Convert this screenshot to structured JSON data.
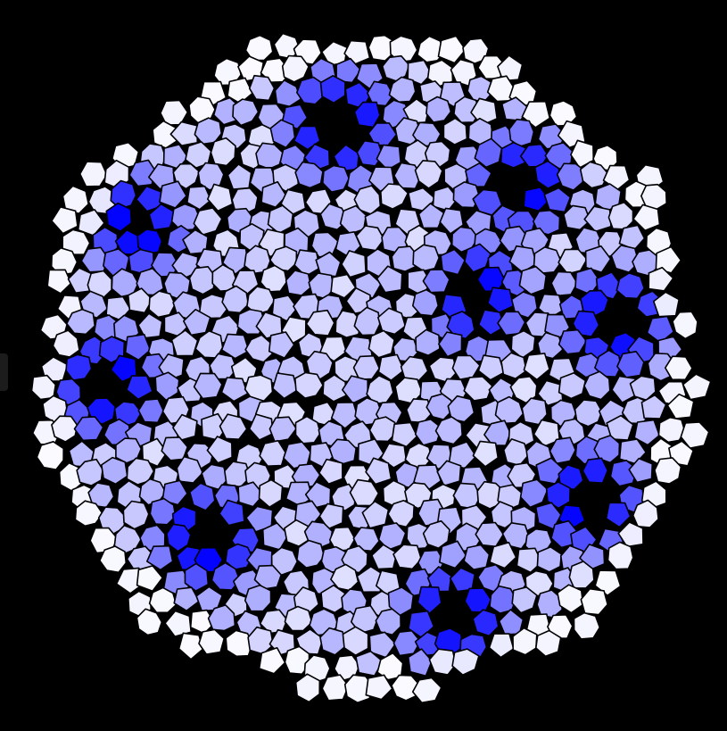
{
  "image": {
    "subject": "",
    "colors": {
      "background": "#000000",
      "cell_edge": "#000000",
      "pale": "#ffffff",
      "saturated": "#0000ff"
    },
    "color_scale": "white-to-blue",
    "cell_style": "irregular polygonal cells with black outlines"
  }
}
